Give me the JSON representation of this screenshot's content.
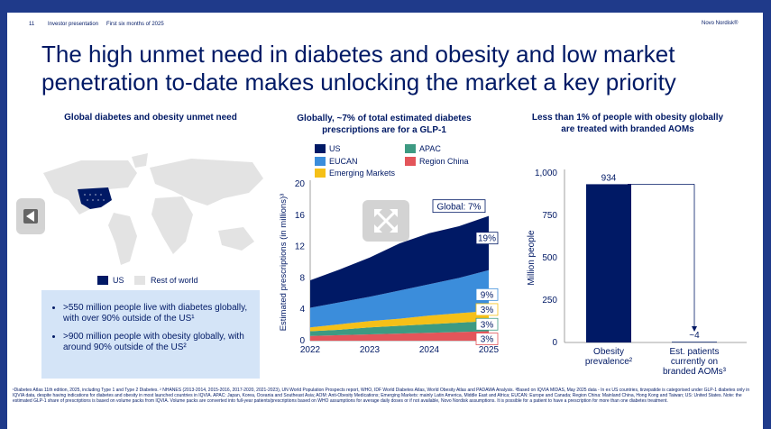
{
  "header": {
    "page_number": "11",
    "doc_name": "Investor presentation",
    "period": "First six months of 2025",
    "brand": "Novo Nordisk®"
  },
  "title": "The high unmet need in diabetes and obesity and low market penetration to-date makes unlocking the market a key priority",
  "left_panel": {
    "heading": "Global diabetes and obesity unmet need",
    "legend": {
      "us": "US",
      "row": "Rest of world"
    },
    "bullets": [
      ">550 million people live with diabetes globally, with over 90% outside of the US¹",
      ">900 million people with obesity globally, with around 90% outside of the US²"
    ]
  },
  "middle_panel": {
    "heading_line1": "Globally, ~7% of total estimated diabetes",
    "heading_line2": "prescriptions are for a GLP-1",
    "legend": [
      "US",
      "APAC",
      "EUCAN",
      "Region China",
      "Emerging Markets"
    ]
  },
  "right_panel": {
    "heading_line1": "Less than 1% of people with obesity globally",
    "heading_line2": "are treated with branded AOMs"
  },
  "colors": {
    "navy": "#001965",
    "us": "#001965",
    "eucan": "#3b8ddb",
    "emerging": "#f5c018",
    "apac": "#3d9a82",
    "china": "#e3555a",
    "map_us": "#001965",
    "map_row": "#e3e3e3"
  },
  "chart_data": [
    {
      "type": "area",
      "ylabel": "Estimated prescriptions (in millions)³",
      "x_ticks": [
        "2022",
        "2023",
        "2024",
        "2025"
      ],
      "y_ticks": [
        "0",
        "4",
        "8",
        "12",
        "16",
        "20"
      ],
      "ylim": [
        0,
        20
      ],
      "x": [
        2022,
        2022.5,
        2023,
        2023.5,
        2024,
        2024.5,
        2025
      ],
      "series": [
        {
          "name": "Region China",
          "values": [
            0.6,
            0.7,
            0.8,
            0.9,
            1.0,
            1.1,
            1.2
          ]
        },
        {
          "name": "APAC",
          "values": [
            0.6,
            0.7,
            0.9,
            1.0,
            1.1,
            1.2,
            1.3
          ]
        },
        {
          "name": "Emerging Markets",
          "values": [
            0.5,
            0.7,
            0.8,
            0.9,
            1.1,
            1.2,
            1.3
          ]
        },
        {
          "name": "EUCAN",
          "values": [
            2.5,
            2.8,
            3.1,
            3.6,
            4.0,
            4.5,
            5.2
          ]
        },
        {
          "name": "US",
          "values": [
            3.5,
            4.2,
            5.0,
            6.0,
            6.5,
            6.6,
            6.9
          ]
        }
      ],
      "annotations": {
        "global": "Global: 7%",
        "us": "19%",
        "eucan": "9%",
        "emerging": "3%",
        "apac": "3%",
        "china": "3%"
      },
      "legend": "top"
    },
    {
      "type": "bar",
      "ylabel": "Million people",
      "categories": [
        "Obesity prevalence²",
        "Est. patients currently on branded AOMs³"
      ],
      "category_lines": [
        [
          "Obesity",
          "prevalence²"
        ],
        [
          "Est. patients",
          "currently on",
          "branded AOMs³"
        ]
      ],
      "values": [
        934,
        4
      ],
      "value_labels": [
        "934",
        "~4"
      ],
      "y_ticks": [
        "0",
        "250",
        "500",
        "750",
        "1,000"
      ],
      "ylim": [
        0,
        1000
      ]
    }
  ],
  "footnote": "¹Diabetes Atlas 11th edition, 2025, including Type 1 and Type 2 Diabetes. ² NHANES (2013-2014, 2015-2016, 2017-2020, 2021-2023), UN World Population Prospects report, WHO, IDF World Diabetes Atlas, World Obesity Atlas and PADAWA Analysis. ³Based on IQVIA MIDAS, May 2025 data - In ex US countries, tirzepatide is categorised under GLP-1 diabetes only in IQVIA data, despite having indications for diabetes and obesity in most launched countries in IQVIA. APAC: Japan, Korea, Oceania and Southeast Asia; AOM: Anti-Obesity Medications; Emerging Markets: mainly Latin America, Middle East and Africa; EUCAN: Europe and Canada; Region China: Mainland China, Hong Kong and Taiwan; US: United States. Note: the estimated GLP-1 share of prescriptions is based on volume packs from IQVIA. Volume packs are converted into full-year patients/prescriptions based on WHO assumptions for average daily doses or if not available, Novo Nordisk assumptions. It is possible for a patient to have a prescription for more than one diabetes treatment."
}
